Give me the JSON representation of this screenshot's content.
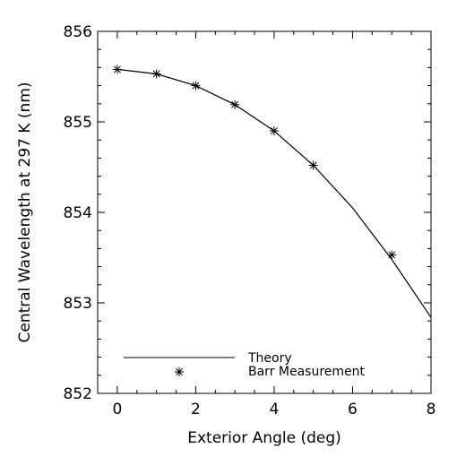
{
  "chart_data": {
    "type": "line",
    "xlabel": "Exterior Angle (deg)",
    "ylabel": "Central Wavelength at 297 K (nm)",
    "xlim": [
      -0.5,
      8
    ],
    "ylim": [
      852,
      856
    ],
    "x_ticks": [
      0,
      2,
      4,
      6,
      8
    ],
    "y_ticks": [
      852,
      853,
      854,
      855,
      856
    ],
    "x_tick_labels": [
      "0",
      "2",
      "4",
      "6",
      "8"
    ],
    "y_tick_labels": [
      "852",
      "853",
      "854",
      "855",
      "856"
    ],
    "grid": false,
    "legend_position": "bottom-left",
    "series": [
      {
        "name": "Theory",
        "style": "line",
        "x": [
          0,
          1,
          2,
          3,
          4,
          5,
          6,
          7,
          8
        ],
        "y": [
          855.58,
          855.53,
          855.4,
          855.19,
          854.9,
          854.52,
          854.05,
          853.48,
          852.84
        ]
      },
      {
        "name": "Barr Measurement",
        "style": "asterisk",
        "x": [
          0,
          1,
          2,
          3,
          4,
          5,
          7
        ],
        "y": [
          855.58,
          855.53,
          855.4,
          855.19,
          854.9,
          854.52,
          853.53
        ]
      }
    ],
    "colors": {
      "line": "#000000",
      "marker": "#000000",
      "axis": "#000000"
    }
  }
}
